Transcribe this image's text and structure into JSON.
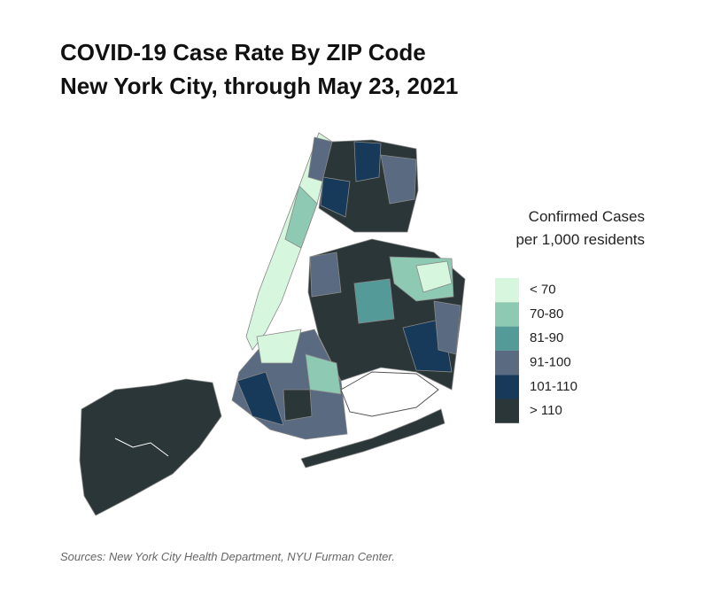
{
  "header": {
    "title_lines": [
      "COVID-19 Case Rate By ZIP Code",
      "New York City, through May 23, 2021"
    ]
  },
  "legend": {
    "title_lines": [
      "Confirmed Cases",
      "per 1,000 residents"
    ],
    "items": [
      {
        "label": "< 70",
        "color": "#d6f6dd"
      },
      {
        "label": "70-80",
        "color": "#8ecab3"
      },
      {
        "label": "81-90",
        "color": "#539a99"
      },
      {
        "label": "91-100",
        "color": "#5a6a80"
      },
      {
        "label": "101-110",
        "color": "#17395a"
      },
      {
        "label": "> 110",
        "color": "#2b3638"
      }
    ]
  },
  "footer": {
    "source": "Sources: New York City Health Department, NYU Furman Center."
  }
}
